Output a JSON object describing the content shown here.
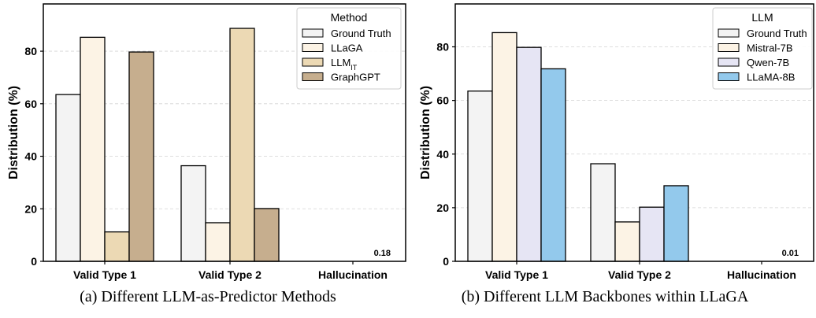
{
  "captions": [
    "(a) Different LLM-as-Predictor Methods",
    "(b) Different LLM Backbones within LLaGA"
  ],
  "chart_data": [
    {
      "type": "bar",
      "ylabel": "Distribution (%)",
      "categories": [
        "Valid Type 1",
        "Valid Type 2",
        "Hallucination"
      ],
      "ylim": [
        0,
        98
      ],
      "yticks": [
        0,
        20,
        40,
        60,
        80
      ],
      "grid": "horizontal dashed",
      "legend_title": "Method",
      "legend_position": "top-right",
      "series": [
        {
          "name": "Ground Truth",
          "color": "#f3f3f3",
          "values": [
            63.5,
            36.4,
            0
          ]
        },
        {
          "name": "LLaGA",
          "color": "#fcf3e5",
          "values": [
            85.3,
            14.7,
            0
          ]
        },
        {
          "name": "LLM",
          "name_subscript": "IT",
          "color": "#ecd9b4",
          "values": [
            11.2,
            88.7,
            0
          ]
        },
        {
          "name": "GraphGPT",
          "color": "#c6ae8e",
          "values": [
            79.7,
            20.1,
            0.18
          ]
        }
      ],
      "annotation": "0.18"
    },
    {
      "type": "bar",
      "ylabel": "Distribution (%)",
      "categories": [
        "Valid Type 1",
        "Valid Type 2",
        "Hallucination"
      ],
      "ylim": [
        0,
        96
      ],
      "yticks": [
        0,
        20,
        40,
        60,
        80
      ],
      "grid": "horizontal dashed",
      "legend_title": "LLM",
      "legend_position": "top-right",
      "series": [
        {
          "name": "Ground Truth",
          "color": "#f3f3f3",
          "values": [
            63.5,
            36.4,
            0
          ]
        },
        {
          "name": "Mistral-7B",
          "color": "#fcf3e5",
          "values": [
            85.3,
            14.7,
            0
          ]
        },
        {
          "name": "Qwen-7B",
          "color": "#e6e5f4",
          "values": [
            79.8,
            20.2,
            0
          ]
        },
        {
          "name": "LLaMA-8B",
          "color": "#93c9ec",
          "values": [
            71.8,
            28.2,
            0.01
          ]
        }
      ],
      "annotation": "0.01"
    }
  ]
}
